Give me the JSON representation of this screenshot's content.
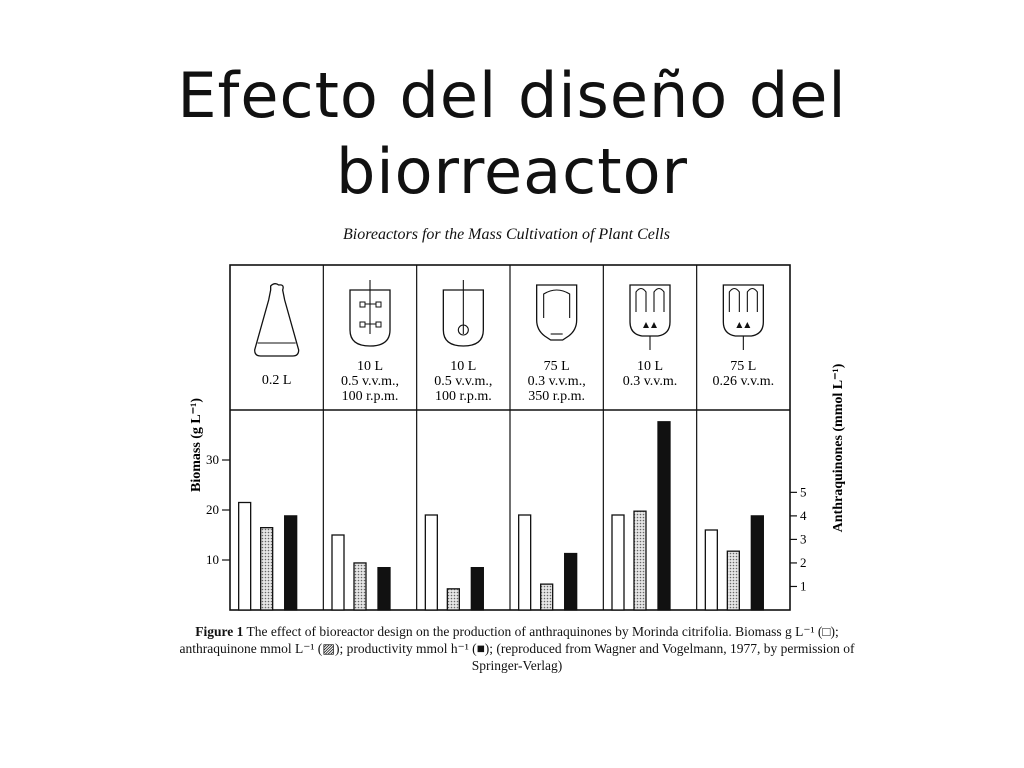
{
  "slide": {
    "title_line1": "Efecto del diseño del",
    "title_line2": "biorreactor"
  },
  "figure": {
    "heading": "Bioreactors for the Mass Cultivation of Plant Cells",
    "caption_lead": "Figure 1",
    "caption_text": "The effect of bioreactor design on the production of anthraquinones by Morinda citrifolia. Biomass g L⁻¹ (□); anthraquinone mmol L⁻¹ (▨); productivity mmol h⁻¹ (■); (reproduced from Wagner and Vogelmann, 1977, by permission of Springer-Verlag)"
  },
  "chart_data": {
    "type": "bar",
    "categories": [
      [
        "0.2 L"
      ],
      [
        "10 L",
        "0.5 v.v.m.,",
        "100 r.p.m."
      ],
      [
        "10 L",
        "0.5 v.v.m.,",
        "100 r.p.m."
      ],
      [
        "75 L",
        "0.3 v.v.m.,",
        "350 r.p.m."
      ],
      [
        "10 L",
        "0.3 v.v.m."
      ],
      [
        "75 L",
        "0.26 v.v.m."
      ]
    ],
    "vessel_icons": [
      "flask-icon",
      "stirred-tank-flat-blade-icon",
      "stirred-tank-turbine-icon",
      "draft-tube-loop-icon",
      "airlift-icon",
      "airlift-icon"
    ],
    "series": [
      {
        "name": "Biomass g L⁻¹",
        "fill": "#ffffff",
        "axis": "left",
        "values": [
          21.5,
          15,
          19,
          19,
          19,
          16
        ]
      },
      {
        "name": "anthraquinone mmol L⁻¹",
        "fill": "#bdbdbd",
        "axis": "right",
        "values": [
          3.5,
          2,
          0.9,
          1.1,
          4.2,
          2.5
        ]
      },
      {
        "name": "productivity mmol h⁻¹",
        "fill": "#111111",
        "axis": "right",
        "values": [
          4,
          1.8,
          1.8,
          2.4,
          8,
          4
        ]
      }
    ],
    "ylabel_left": "Biomass (g L⁻¹)",
    "ylabel_right": "Anthraquinones (mmol L⁻¹)",
    "yticks_left": [
      10,
      20,
      30
    ],
    "yticks_right": [
      1,
      2,
      3,
      4,
      5
    ],
    "ylim_left": [
      0,
      40
    ],
    "ylim_right": [
      0,
      8.5
    ]
  }
}
